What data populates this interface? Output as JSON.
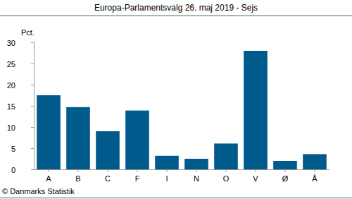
{
  "chart_data": {
    "type": "bar",
    "title": "Europa-Parlamentsvalg 26. maj 2019 - Sejs",
    "y_label": "Pct.",
    "source": "© Danmarks Statistik",
    "categories": [
      "A",
      "B",
      "C",
      "F",
      "I",
      "N",
      "O",
      "V",
      "Ø",
      "Å"
    ],
    "values": [
      17.5,
      14.7,
      9.0,
      13.9,
      3.2,
      2.5,
      6.1,
      28.0,
      2.0,
      3.6
    ],
    "color": "#005a8c",
    "ylim": [
      0,
      30
    ],
    "yticks": [
      0,
      5,
      10,
      15,
      20,
      25,
      30
    ],
    "grid": false
  }
}
